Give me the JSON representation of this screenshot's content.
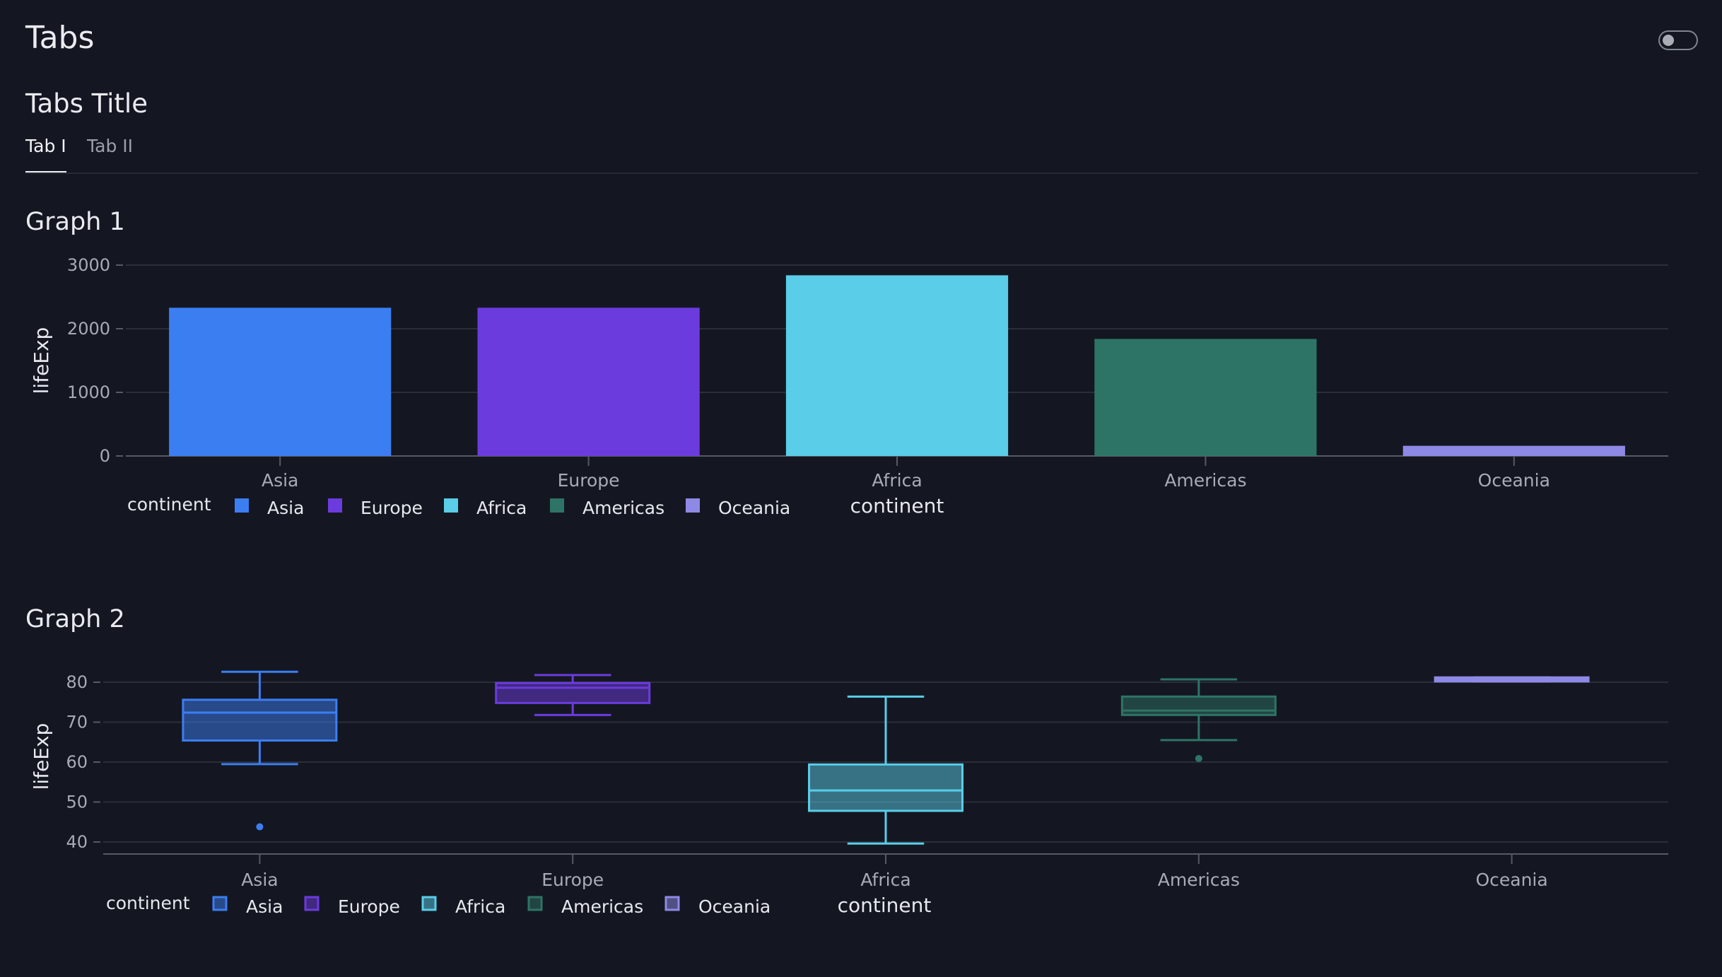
{
  "page": {
    "title": "Tabs"
  },
  "tabs": {
    "title": "Tabs Title",
    "items": [
      {
        "label": "Tab I",
        "active": true
      },
      {
        "label": "Tab II",
        "active": false
      }
    ]
  },
  "colors": {
    "Asia": "#3b7ef2",
    "Europe": "#6c3bde",
    "Africa": "#5acde8",
    "Americas": "#2e7466",
    "Oceania": "#8f89e6"
  },
  "graph1": {
    "title": "Graph 1",
    "chart_data": {
      "type": "bar",
      "categories": [
        "Asia",
        "Europe",
        "Africa",
        "Americas",
        "Oceania"
      ],
      "values": [
        2330,
        2330,
        2840,
        1840,
        160
      ],
      "xlabel": "continent",
      "ylabel": "lifeExp",
      "yticks": [
        0,
        1000,
        2000,
        3000
      ],
      "ylim": [
        0,
        3000
      ],
      "legend": {
        "title": "continent",
        "entries": [
          "Asia",
          "Europe",
          "Africa",
          "Americas",
          "Oceania"
        ]
      },
      "grid": true
    }
  },
  "graph2": {
    "title": "Graph 2",
    "chart_data": {
      "type": "box",
      "categories": [
        "Asia",
        "Europe",
        "Africa",
        "Americas",
        "Oceania"
      ],
      "boxes": [
        {
          "name": "Asia",
          "min": 59.5,
          "q1": 65.4,
          "median": 72.4,
          "q3": 75.6,
          "max": 82.6,
          "outliers": [
            43.8
          ]
        },
        {
          "name": "Europe",
          "min": 71.8,
          "q1": 74.8,
          "median": 78.6,
          "q3": 79.8,
          "max": 81.8,
          "outliers": []
        },
        {
          "name": "Africa",
          "min": 39.6,
          "q1": 47.8,
          "median": 52.9,
          "q3": 59.4,
          "max": 76.4,
          "outliers": []
        },
        {
          "name": "Americas",
          "min": 65.5,
          "q1": 71.8,
          "median": 72.9,
          "q3": 76.4,
          "max": 80.7,
          "outliers": [
            60.9
          ]
        },
        {
          "name": "Oceania",
          "min": 80.2,
          "q1": 80.2,
          "median": 80.7,
          "q3": 81.2,
          "max": 81.2,
          "outliers": []
        }
      ],
      "xlabel": "continent",
      "ylabel": "lifeExp",
      "yticks": [
        40,
        50,
        60,
        70,
        80
      ],
      "legend": {
        "title": "continent",
        "entries": [
          "Asia",
          "Europe",
          "Africa",
          "Americas",
          "Oceania"
        ]
      },
      "grid": true
    }
  }
}
